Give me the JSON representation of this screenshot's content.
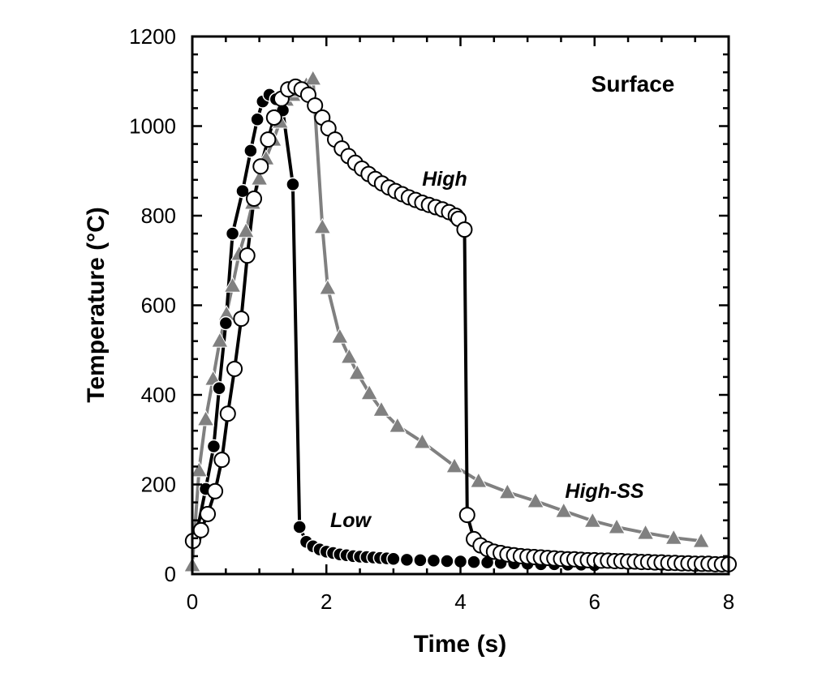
{
  "chart_data": {
    "type": "scatter",
    "title": "",
    "xlabel": "Time (s)",
    "ylabel": "Temperature (°C)",
    "xlim": [
      0,
      8
    ],
    "ylim": [
      0,
      1200
    ],
    "xticks": [
      "0",
      "2",
      "4",
      "6",
      "8"
    ],
    "yticks": [
      "0",
      "200",
      "400",
      "600",
      "800",
      "1000",
      "1200"
    ],
    "grid": false,
    "annotations": {
      "panel": "Surface",
      "high": "High",
      "low": "Low",
      "high_ss": "High-SS"
    },
    "series": [
      {
        "name": "Low",
        "marker": "filled-circle",
        "color": "#000000",
        "points": [
          [
            0.05,
            80
          ],
          [
            0.2,
            190
          ],
          [
            0.32,
            285
          ],
          [
            0.4,
            415
          ],
          [
            0.5,
            560
          ],
          [
            0.6,
            760
          ],
          [
            0.75,
            855
          ],
          [
            0.87,
            945
          ],
          [
            0.97,
            1015
          ],
          [
            1.05,
            1055
          ],
          [
            1.15,
            1070
          ],
          [
            1.25,
            1060
          ],
          [
            1.35,
            1035
          ],
          [
            1.5,
            870
          ],
          [
            1.6,
            105
          ],
          [
            1.7,
            72
          ],
          [
            1.8,
            62
          ],
          [
            1.9,
            55
          ],
          [
            2.0,
            50
          ],
          [
            2.1,
            47
          ],
          [
            2.2,
            44
          ],
          [
            2.3,
            42
          ],
          [
            2.4,
            40
          ],
          [
            2.5,
            39
          ],
          [
            2.6,
            38
          ],
          [
            2.7,
            37
          ],
          [
            2.8,
            36
          ],
          [
            2.9,
            35
          ],
          [
            3.0,
            34
          ],
          [
            3.2,
            32
          ],
          [
            3.4,
            31
          ],
          [
            3.6,
            30
          ],
          [
            3.8,
            29
          ],
          [
            4.0,
            28
          ],
          [
            4.2,
            27
          ],
          [
            4.4,
            26
          ],
          [
            4.6,
            25
          ],
          [
            4.8,
            24
          ],
          [
            5.0,
            23
          ],
          [
            5.2,
            22
          ],
          [
            5.4,
            22
          ],
          [
            5.6,
            21
          ],
          [
            5.8,
            21
          ],
          [
            6.0,
            20
          ]
        ]
      },
      {
        "name": "High",
        "marker": "open-circle",
        "color": "#000000",
        "points": [
          [
            0.01,
            74
          ],
          [
            0.13,
            98
          ],
          [
            0.23,
            134
          ],
          [
            0.34,
            185
          ],
          [
            0.44,
            255
          ],
          [
            0.53,
            358
          ],
          [
            0.63,
            458
          ],
          [
            0.73,
            570
          ],
          [
            0.82,
            711
          ],
          [
            0.92,
            838
          ],
          [
            1.02,
            910
          ],
          [
            1.13,
            970
          ],
          [
            1.22,
            1019
          ],
          [
            1.33,
            1061
          ],
          [
            1.43,
            1082
          ],
          [
            1.54,
            1088
          ],
          [
            1.63,
            1082
          ],
          [
            1.73,
            1070
          ],
          [
            1.83,
            1046
          ],
          [
            1.94,
            1019
          ],
          [
            2.03,
            995
          ],
          [
            2.13,
            970
          ],
          [
            2.23,
            950
          ],
          [
            2.33,
            933
          ],
          [
            2.43,
            918
          ],
          [
            2.53,
            905
          ],
          [
            2.63,
            893
          ],
          [
            2.73,
            882
          ],
          [
            2.83,
            872
          ],
          [
            2.93,
            863
          ],
          [
            3.03,
            855
          ],
          [
            3.13,
            848
          ],
          [
            3.23,
            841
          ],
          [
            3.33,
            835
          ],
          [
            3.43,
            829
          ],
          [
            3.53,
            824
          ],
          [
            3.63,
            819
          ],
          [
            3.73,
            814
          ],
          [
            3.83,
            808
          ],
          [
            3.93,
            800
          ],
          [
            3.97,
            793
          ],
          [
            4.06,
            769
          ],
          [
            4.1,
            132
          ],
          [
            4.2,
            78
          ],
          [
            4.3,
            64
          ],
          [
            4.4,
            56
          ],
          [
            4.5,
            50
          ],
          [
            4.6,
            47
          ],
          [
            4.7,
            44
          ],
          [
            4.8,
            42
          ],
          [
            4.9,
            40
          ],
          [
            5.0,
            39
          ],
          [
            5.1,
            38
          ],
          [
            5.2,
            37
          ],
          [
            5.3,
            36
          ],
          [
            5.4,
            35
          ],
          [
            5.5,
            34
          ],
          [
            5.6,
            33
          ],
          [
            5.7,
            33
          ],
          [
            5.8,
            32
          ],
          [
            5.9,
            31
          ],
          [
            6.0,
            31
          ],
          [
            6.1,
            30
          ],
          [
            6.2,
            30
          ],
          [
            6.3,
            29
          ],
          [
            6.4,
            29
          ],
          [
            6.5,
            28
          ],
          [
            6.6,
            28
          ],
          [
            6.7,
            27
          ],
          [
            6.8,
            27
          ],
          [
            6.9,
            26
          ],
          [
            7.0,
            26
          ],
          [
            7.1,
            25
          ],
          [
            7.2,
            25
          ],
          [
            7.3,
            24
          ],
          [
            7.4,
            24
          ],
          [
            7.5,
            23
          ],
          [
            7.6,
            23
          ],
          [
            7.7,
            23
          ],
          [
            7.8,
            22
          ],
          [
            7.9,
            22
          ],
          [
            8.0,
            22
          ]
        ]
      },
      {
        "name": "High-SS",
        "marker": "triangle",
        "color": "#808080",
        "points": [
          [
            0.0,
            20
          ],
          [
            0.1,
            232
          ],
          [
            0.2,
            346
          ],
          [
            0.31,
            436
          ],
          [
            0.41,
            521
          ],
          [
            0.51,
            581
          ],
          [
            0.6,
            644
          ],
          [
            0.7,
            715
          ],
          [
            0.8,
            766
          ],
          [
            0.9,
            829
          ],
          [
            1.0,
            883
          ],
          [
            1.1,
            928
          ],
          [
            1.21,
            970
          ],
          [
            1.31,
            1010
          ],
          [
            1.4,
            1059
          ],
          [
            1.5,
            1070
          ],
          [
            1.6,
            1080
          ],
          [
            1.7,
            1092
          ],
          [
            1.8,
            1106
          ],
          [
            1.94,
            775
          ],
          [
            2.02,
            639
          ],
          [
            2.2,
            530
          ],
          [
            2.34,
            485
          ],
          [
            2.46,
            449
          ],
          [
            2.64,
            404
          ],
          [
            2.82,
            367
          ],
          [
            3.06,
            331
          ],
          [
            3.43,
            295
          ],
          [
            3.91,
            241
          ],
          [
            4.27,
            208
          ],
          [
            4.7,
            183
          ],
          [
            5.12,
            163
          ],
          [
            5.54,
            141
          ],
          [
            5.97,
            119
          ],
          [
            6.33,
            105
          ],
          [
            6.76,
            92
          ],
          [
            7.18,
            81
          ],
          [
            7.59,
            74
          ]
        ]
      }
    ]
  }
}
